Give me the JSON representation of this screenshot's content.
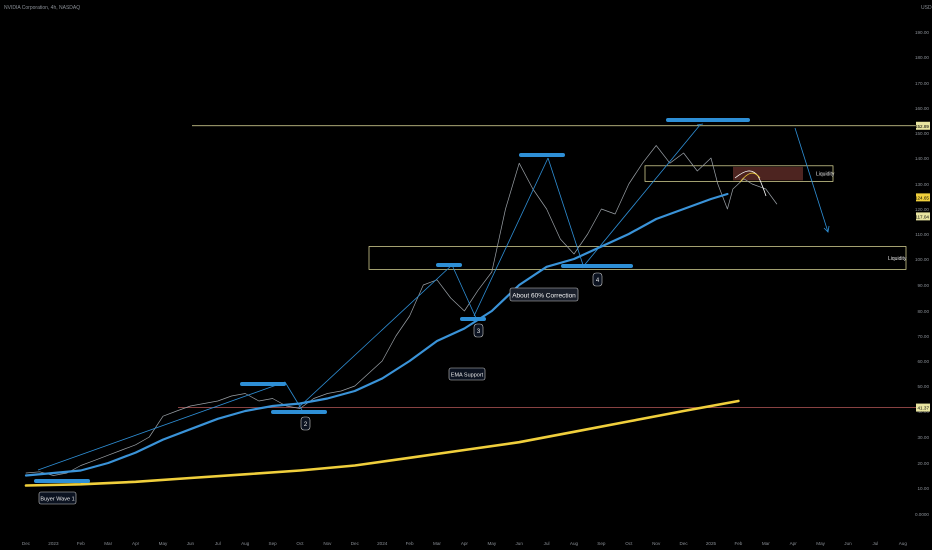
{
  "chart_data": {
    "type": "line",
    "symbol_label": "NVIDIA Corporation, 4h, NASDAQ",
    "currency": "USD",
    "x_ticks": [
      "Dec",
      "2023",
      "Feb",
      "Mar",
      "Apr",
      "May",
      "Jun",
      "Jul",
      "Aug",
      "Sep",
      "Oct",
      "Nov",
      "Dec",
      "2024",
      "Feb",
      "Mar",
      "Apr",
      "May",
      "Jun",
      "Jul",
      "Aug",
      "Sep",
      "Oct",
      "Nov",
      "Dec",
      "2025",
      "Feb",
      "Mar",
      "Apr",
      "May",
      "Jun",
      "Jul",
      "Aug"
    ],
    "y_ticks": [
      "190.00",
      "180.00",
      "170.00",
      "160.00",
      "150.00",
      "140.00",
      "130.00",
      "120.00",
      "110.00",
      "100.00",
      "90.00",
      "80.00",
      "70.00",
      "60.00",
      "50.00",
      "40.00",
      "30.00",
      "20.00",
      "10.00",
      "0.0000"
    ],
    "price_badges": [
      "152.89",
      "124.65",
      "117.04",
      "41.37"
    ],
    "series": [
      {
        "name": "price",
        "color": "#9aa0a6",
        "points": [
          [
            0,
            16
          ],
          [
            0.5,
            16.5
          ],
          [
            1,
            15
          ],
          [
            1.5,
            16
          ],
          [
            2,
            19
          ],
          [
            2.5,
            21
          ],
          [
            3,
            23
          ],
          [
            3.5,
            25
          ],
          [
            4,
            27
          ],
          [
            4.5,
            30
          ],
          [
            5,
            38
          ],
          [
            5.5,
            40
          ],
          [
            6,
            42
          ],
          [
            6.5,
            43
          ],
          [
            7,
            44
          ],
          [
            7.5,
            46
          ],
          [
            8,
            47
          ],
          [
            8.5,
            44
          ],
          [
            9,
            45
          ],
          [
            9.5,
            42
          ],
          [
            10,
            41
          ],
          [
            10.5,
            45
          ],
          [
            11,
            47
          ],
          [
            11.5,
            48
          ],
          [
            12,
            50
          ],
          [
            12.5,
            55
          ],
          [
            13,
            60
          ],
          [
            13.5,
            70
          ],
          [
            14,
            78
          ],
          [
            14.5,
            90
          ],
          [
            15,
            92
          ],
          [
            15.5,
            85
          ],
          [
            16,
            80
          ],
          [
            16.5,
            88
          ],
          [
            17,
            95
          ],
          [
            17.5,
            120
          ],
          [
            18,
            138
          ],
          [
            18.5,
            128
          ],
          [
            19,
            120
          ],
          [
            19.5,
            108
          ],
          [
            20,
            102
          ],
          [
            20.5,
            110
          ],
          [
            21,
            120
          ],
          [
            21.5,
            118
          ],
          [
            22,
            130
          ],
          [
            22.5,
            138
          ],
          [
            23,
            145
          ],
          [
            23.5,
            138
          ],
          [
            24,
            142
          ],
          [
            24.5,
            135
          ],
          [
            25,
            140
          ],
          [
            25.25,
            130
          ],
          [
            25.6,
            120
          ],
          [
            25.8,
            128
          ],
          [
            26.2,
            132
          ],
          [
            26.5,
            130
          ],
          [
            27,
            128
          ],
          [
            27.4,
            122
          ]
        ]
      },
      {
        "name": "EMA Support",
        "color": "#3a93d8",
        "points": [
          [
            0,
            15
          ],
          [
            2,
            17
          ],
          [
            3,
            20
          ],
          [
            4,
            24
          ],
          [
            5,
            29
          ],
          [
            6,
            33
          ],
          [
            7,
            37
          ],
          [
            8,
            40
          ],
          [
            9,
            42
          ],
          [
            10,
            43
          ],
          [
            11,
            45
          ],
          [
            12,
            48
          ],
          [
            13,
            53
          ],
          [
            14,
            60
          ],
          [
            15,
            68
          ],
          [
            16,
            73
          ],
          [
            17,
            80
          ],
          [
            18,
            90
          ],
          [
            19,
            97
          ],
          [
            20,
            100
          ],
          [
            21,
            105
          ],
          [
            22,
            110
          ],
          [
            23,
            116
          ],
          [
            24,
            120
          ],
          [
            25,
            124
          ],
          [
            25.6,
            126
          ]
        ]
      },
      {
        "name": "long-term MA",
        "color": "#f0cf3c",
        "points": [
          [
            0,
            11
          ],
          [
            2,
            11.5
          ],
          [
            4,
            12.5
          ],
          [
            6,
            14
          ],
          [
            8,
            15.5
          ],
          [
            10,
            17
          ],
          [
            12,
            19
          ],
          [
            14,
            22
          ],
          [
            16,
            25
          ],
          [
            18,
            28
          ],
          [
            20,
            32
          ],
          [
            22,
            36
          ],
          [
            24,
            40
          ],
          [
            25,
            42
          ],
          [
            26,
            44
          ]
        ]
      }
    ],
    "horizontal_levels": [
      152.89,
      41.37
    ],
    "zones": [
      {
        "label": "Liquidity",
        "top": 105,
        "bottom": 96
      },
      {
        "label": "Liquidity",
        "top": 137,
        "bottom": 131
      }
    ],
    "annotations": {
      "wave_numbers": [
        "2",
        "3",
        "4"
      ],
      "buyer_wave": "Buyer Wave 1",
      "ema_support": "EMA Support",
      "correction": "About 60% Correction"
    }
  }
}
